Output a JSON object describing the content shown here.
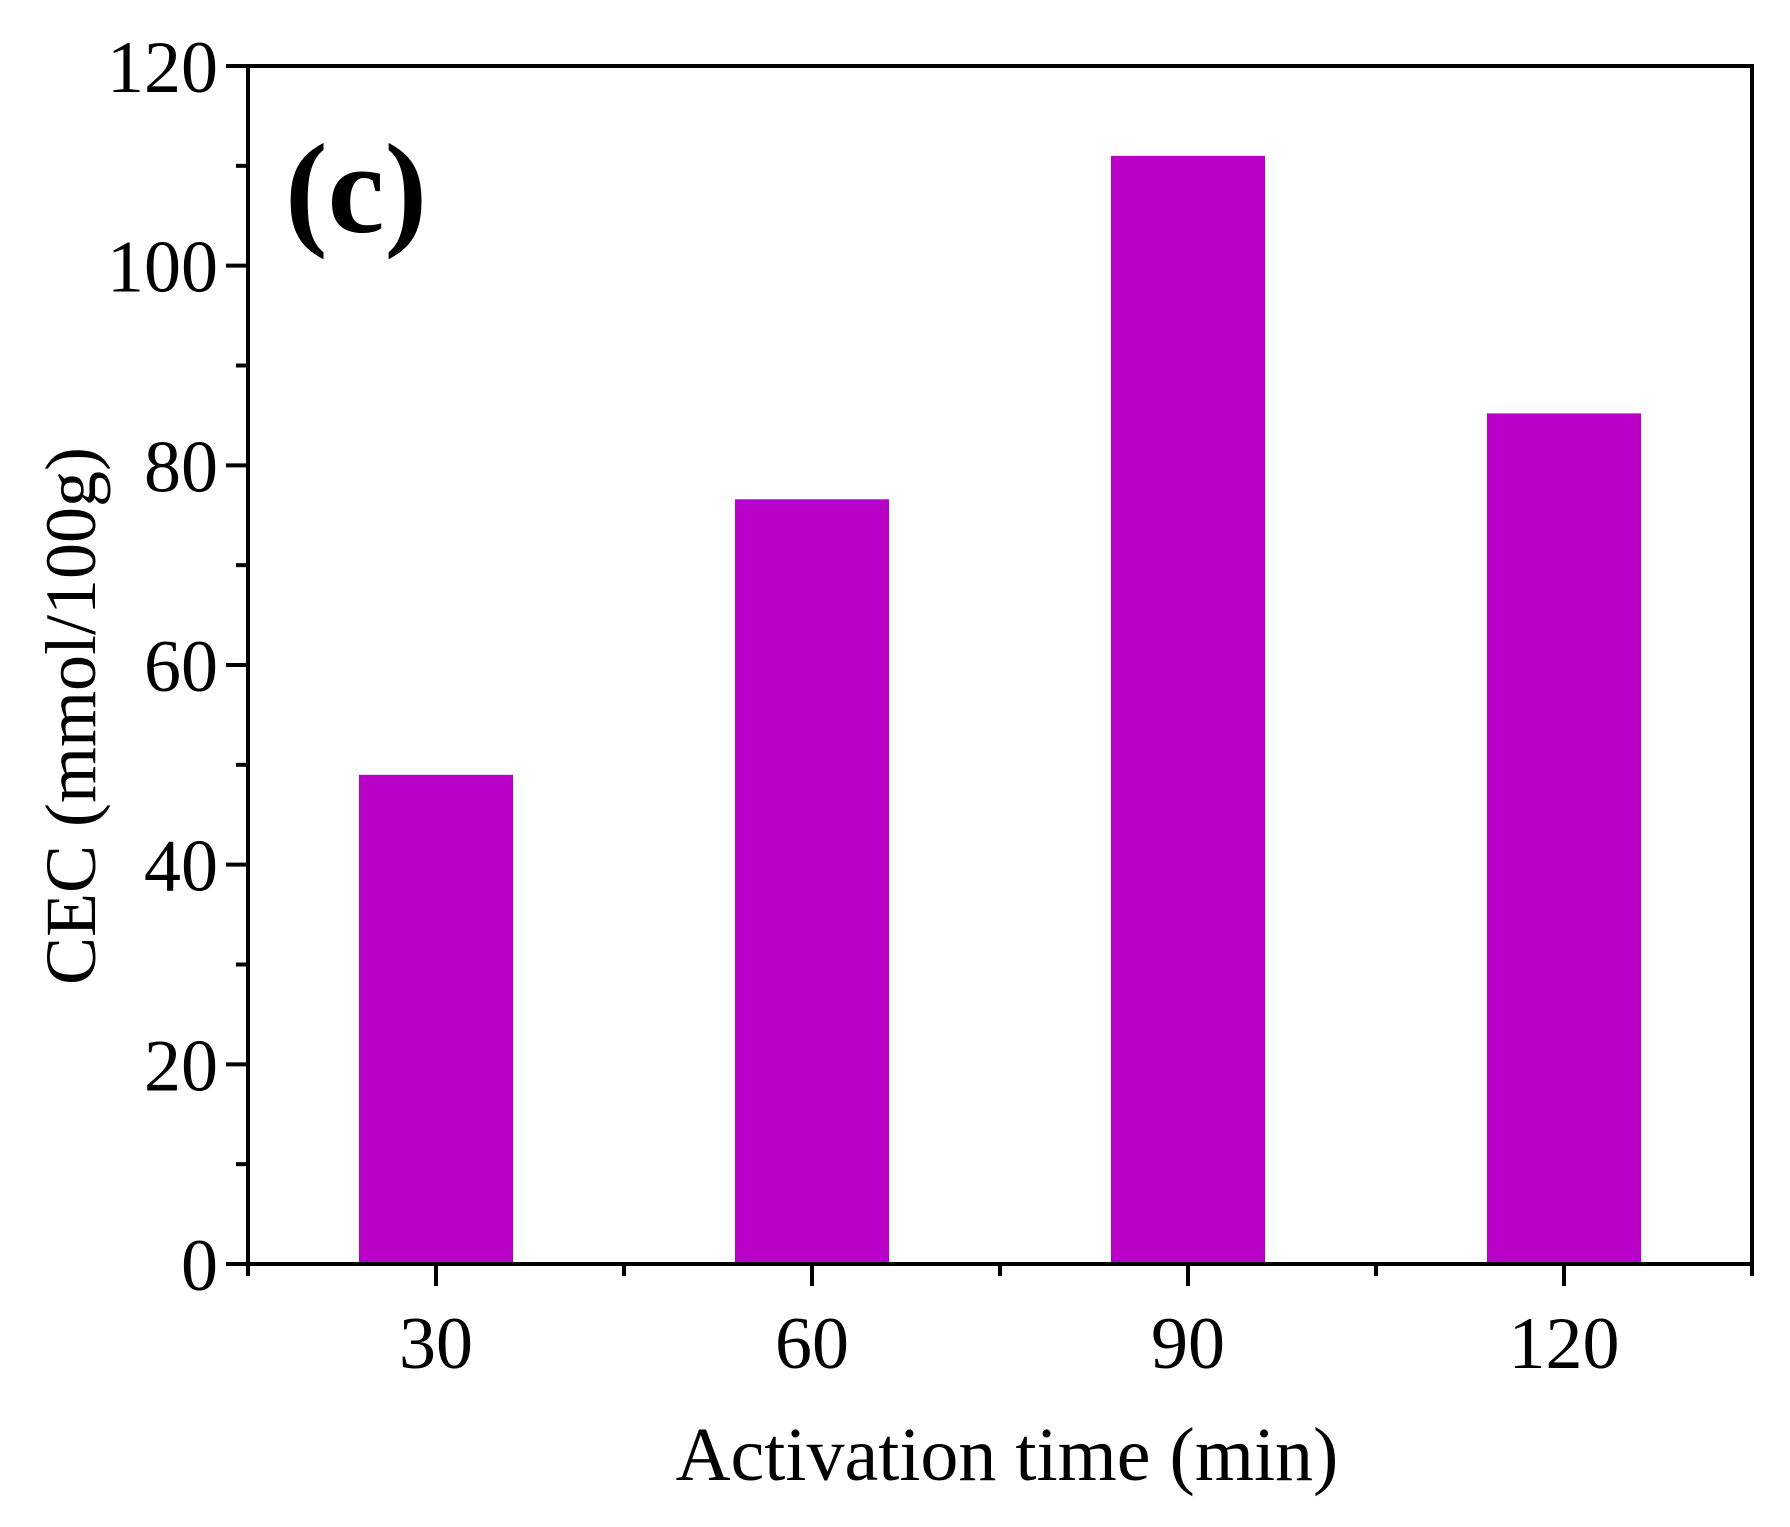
{
  "chart_data": {
    "type": "bar",
    "panel_label": "(c)",
    "title": "",
    "xlabel": "Activation time (min)",
    "ylabel": "CEC (mmol/100g)",
    "categories": [
      "30",
      "60",
      "90",
      "120"
    ],
    "values": [
      49,
      76.6,
      111,
      85.2
    ],
    "ylim": [
      0,
      120
    ],
    "yticks": [
      "0",
      "20",
      "40",
      "60",
      "80",
      "100",
      "120"
    ],
    "bar_color": "#b900c9",
    "grid": false,
    "legend": "none"
  }
}
